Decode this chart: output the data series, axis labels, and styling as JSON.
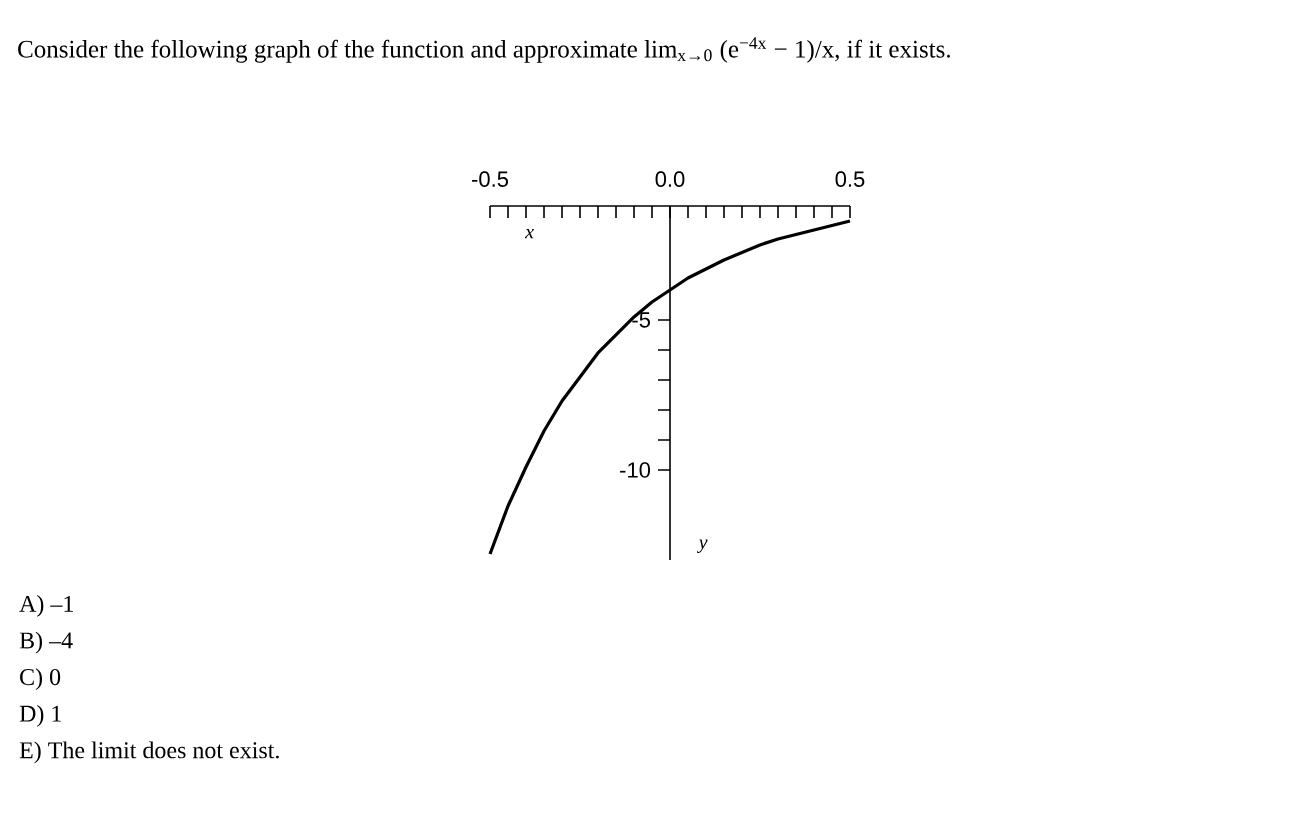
{
  "chart_data": {
    "type": "line",
    "title": "Consider the following graph of the function and approximate lim$_{x→0}$ (e$^{−4x}$ − 1)/x, if it exists.",
    "xlabel": "x",
    "ylabel": "y",
    "x": [
      -0.5,
      -0.45,
      -0.4,
      -0.35,
      -0.3,
      -0.25,
      -0.2,
      -0.15,
      -0.1,
      -0.05,
      0,
      0.05,
      0.1,
      0.15,
      0.2,
      0.25,
      0.3,
      0.35,
      0.4,
      0.45,
      0.5
    ],
    "series": [
      {
        "color": "#000000",
        "values": [
          -12.8,
          -11.2,
          -9.9,
          -8.7,
          -7.7,
          -6.9,
          -6.1,
          -5.5,
          -4.9,
          -4.4,
          -4.0,
          -3.6,
          -3.3,
          -3.0,
          -2.75,
          -2.5,
          -2.3,
          -2.15,
          -2.0,
          -1.85,
          -1.7
        ]
      }
    ],
    "xlim": [
      -0.5,
      0.5
    ],
    "ylim": [
      -13,
      -1.2
    ],
    "xticks": [
      -0.5,
      {
        "value": 0,
        "label": "0.0"
      },
      0.5
    ],
    "yticks": [
      -5,
      -10
    ],
    "annotations": [
      "A)  –1",
      "B)  –4",
      "C)  0",
      "D)  1",
      "E)  The limit does not exist."
    ]
  }
}
